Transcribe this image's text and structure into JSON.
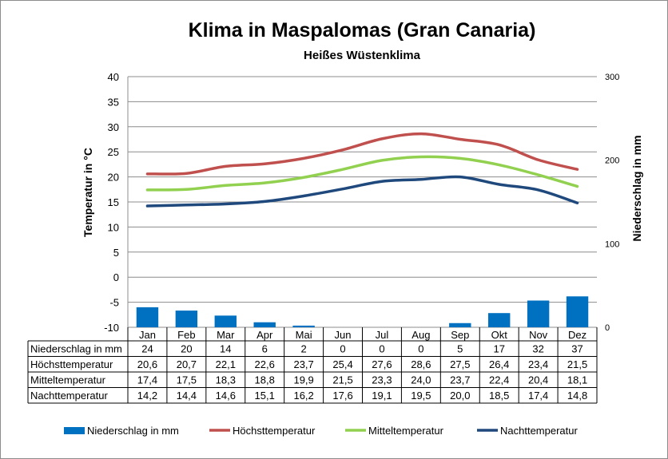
{
  "chart_data": {
    "type": "bar+line",
    "title": "Klima in Maspalomas (Gran Canaria)",
    "subtitle": "Heißes Wüstenklima",
    "ylabel": "Temperatur in °C",
    "y2label": "Niederschlag in mm",
    "ylim": [
      -10,
      40
    ],
    "yticks": [
      -10,
      -5,
      0,
      5,
      10,
      15,
      20,
      25,
      30,
      35,
      40
    ],
    "y2lim": [
      0,
      300
    ],
    "y2ticks": [
      0,
      100,
      200,
      300
    ],
    "grid": true,
    "legend_position": "bottom",
    "categories": [
      "Jan",
      "Feb",
      "Mar",
      "Apr",
      "Mai",
      "Jun",
      "Jul",
      "Aug",
      "Sep",
      "Okt",
      "Nov",
      "Dez"
    ],
    "series": [
      {
        "name": "Niederschlag in mm",
        "kind": "bar",
        "axis": "right",
        "color": "#0070c0",
        "values": [
          24,
          20,
          14,
          6,
          2,
          0,
          0,
          0,
          5,
          17,
          32,
          37
        ],
        "labels": [
          "24",
          "20",
          "14",
          "6",
          "2",
          "0",
          "0",
          "0",
          "5",
          "17",
          "32",
          "37"
        ]
      },
      {
        "name": "Höchsttemperatur",
        "kind": "line",
        "axis": "left",
        "color": "#c0504d",
        "values": [
          20.6,
          20.7,
          22.1,
          22.6,
          23.7,
          25.4,
          27.6,
          28.6,
          27.5,
          26.4,
          23.4,
          21.5
        ],
        "labels": [
          "20,6",
          "20,7",
          "22,1",
          "22,6",
          "23,7",
          "25,4",
          "27,6",
          "28,6",
          "27,5",
          "26,4",
          "23,4",
          "21,5"
        ]
      },
      {
        "name": "Mitteltemperatur",
        "kind": "line",
        "axis": "left",
        "color": "#92d050",
        "values": [
          17.4,
          17.5,
          18.3,
          18.8,
          19.9,
          21.5,
          23.3,
          24.0,
          23.7,
          22.4,
          20.4,
          18.1
        ],
        "labels": [
          "17,4",
          "17,5",
          "18,3",
          "18,8",
          "19,9",
          "21,5",
          "23,3",
          "24,0",
          "23,7",
          "22,4",
          "20,4",
          "18,1"
        ]
      },
      {
        "name": "Nachttemperatur",
        "kind": "line",
        "axis": "left",
        "color": "#1f497d",
        "values": [
          14.2,
          14.4,
          14.6,
          15.1,
          16.2,
          17.6,
          19.1,
          19.5,
          20.0,
          18.5,
          17.4,
          14.8
        ],
        "labels": [
          "14,2",
          "14,4",
          "14,6",
          "15,1",
          "16,2",
          "17,6",
          "19,1",
          "19,5",
          "20,0",
          "18,5",
          "17,4",
          "14,8"
        ]
      }
    ]
  }
}
